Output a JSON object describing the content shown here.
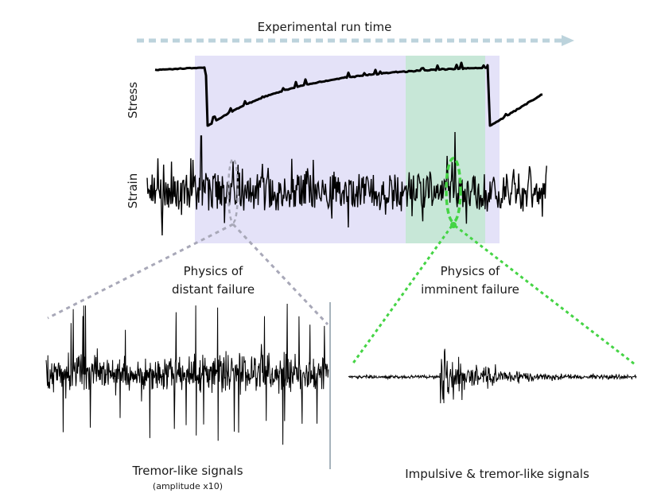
{
  "figure": {
    "run_time_label": "Experimental run time",
    "stress_label": "Stress",
    "strain_label": "Strain",
    "distant": {
      "line1": "Physics of",
      "line2": "distant failure",
      "caption": "Tremor-like signals",
      "caption_sub": "(amplitude x10)"
    },
    "imminent": {
      "line1": "Physics of",
      "line2": "imminent failure",
      "caption": "Impulsive & tremor-like signals"
    }
  },
  "colors": {
    "arrow": "#bcd3dc",
    "distant_region": "#e4e2f8",
    "imminent_region": "#c3e8d3",
    "distant_connector": "#a8a8b8",
    "imminent_connector": "#45d445",
    "signal": "#000000"
  }
}
